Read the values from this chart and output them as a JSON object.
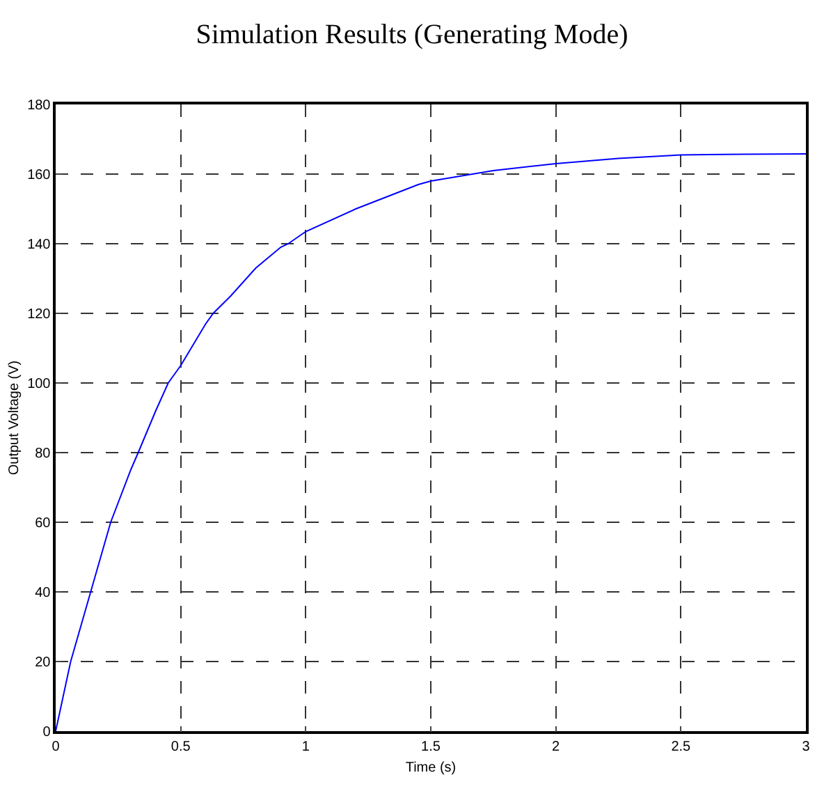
{
  "chart_data": {
    "type": "line",
    "title": "Simulation Results (Generating Mode)",
    "xlabel": "Time (s)",
    "ylabel": "Output Voltage (V)",
    "x": [
      0,
      0.06,
      0.14,
      0.2,
      0.22,
      0.3,
      0.33,
      0.4,
      0.45,
      0.5,
      0.6,
      0.63,
      0.7,
      0.8,
      0.9,
      0.93,
      1,
      1.2,
      1.45,
      1.5,
      1.75,
      2,
      2.25,
      2.5,
      2.75,
      3
    ],
    "series": [
      {
        "color": "#0000ff",
        "values": [
          0,
          20,
          40,
          55,
          60,
          75,
          80,
          92,
          100,
          105,
          117,
          120,
          125,
          133,
          139,
          140,
          143.5,
          150,
          157,
          158,
          161,
          163,
          164.5,
          165.5,
          165.7,
          165.8
        ]
      }
    ],
    "xlim": [
      0,
      3
    ],
    "ylim": [
      0,
      180
    ],
    "xticks": [
      0,
      0.5,
      1,
      1.5,
      2,
      2.5,
      3
    ],
    "yticks": [
      0,
      20,
      40,
      60,
      80,
      100,
      120,
      140,
      160,
      180
    ],
    "grid": true,
    "line_style": "solid",
    "marker": "none"
  }
}
